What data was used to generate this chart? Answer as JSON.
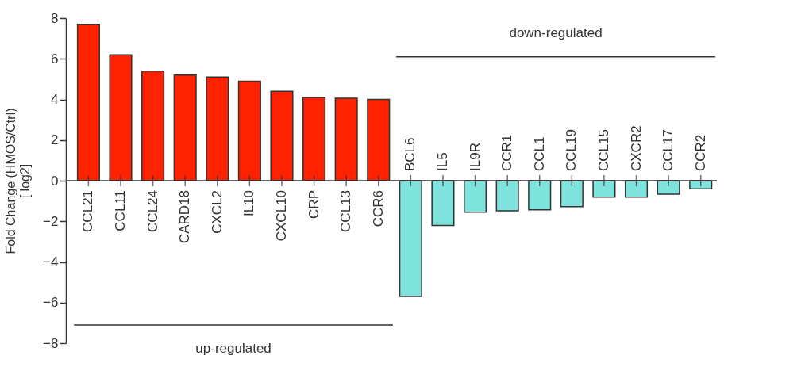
{
  "chart_data": {
    "type": "bar",
    "ylabel": "Fold Change (HMOS/Ctrl)\n[ log2]",
    "categories": [
      "CCL21",
      "CCL11",
      "CCL24",
      "CARD18",
      "CXCL2",
      "IL10",
      "CXCL10",
      "CRP",
      "CCL13",
      "CCR6",
      "BCL6",
      "IL5",
      "IL9R",
      "CCR1",
      "CCL1",
      "CCL19",
      "CCL15",
      "CXCR2",
      "CCL17",
      "CCR2"
    ],
    "series": [
      {
        "color": "#ff2200",
        "values": [
          7.7,
          6.2,
          5.4,
          5.2,
          5.1,
          4.9,
          4.4,
          4.1,
          4.06,
          4.0,
          null,
          null,
          null,
          null,
          null,
          null,
          null,
          null,
          null,
          null
        ]
      },
      {
        "color": "#7fe3dd",
        "values": [
          null,
          null,
          null,
          null,
          null,
          null,
          null,
          null,
          null,
          null,
          -5.7,
          -2.2,
          -1.55,
          -1.48,
          -1.43,
          -1.28,
          -0.81,
          -0.81,
          -0.66,
          -0.4
        ]
      }
    ],
    "ref_lines": [
      {
        "axis": "y",
        "value": -7.1,
        "label": "up-regulated",
        "color": "#333333"
      },
      {
        "axis": "y",
        "value": 6.1,
        "label": "down-regulated",
        "color": "#333333"
      }
    ],
    "ylim": [
      -8,
      8
    ],
    "yticks": [
      -8,
      -6,
      -4,
      -2,
      0,
      2,
      4,
      6,
      8
    ],
    "grid": false
  }
}
